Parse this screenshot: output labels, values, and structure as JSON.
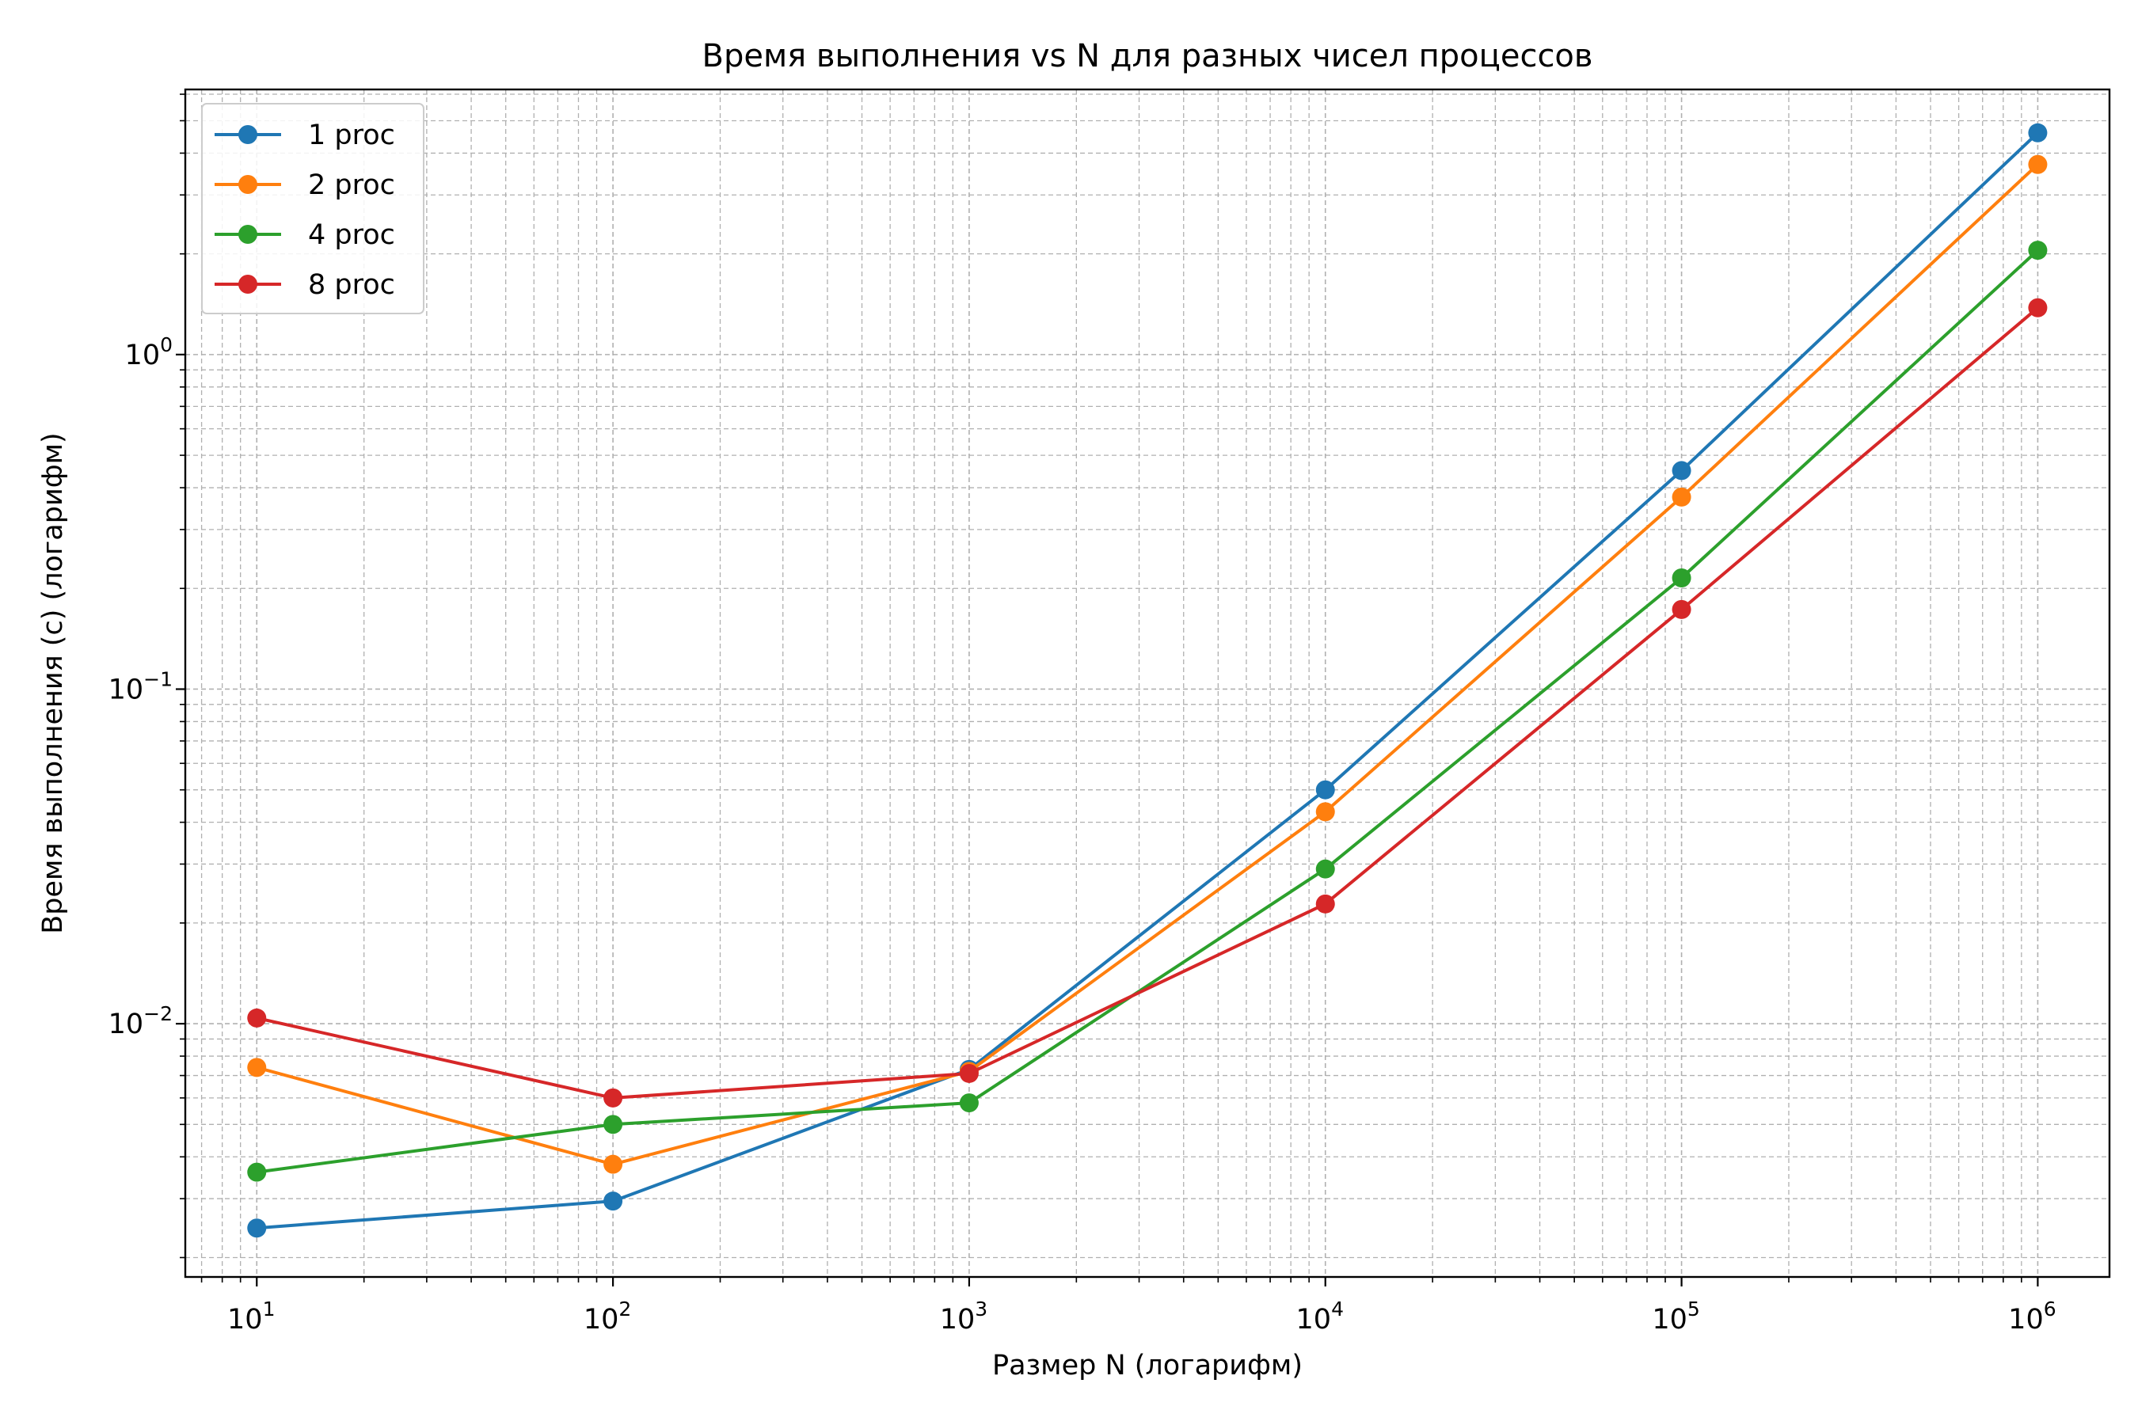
{
  "chart_data": {
    "type": "line",
    "title": "Время выполнения vs N для разных чисел процессов",
    "xlabel": "Размер N (логарифм)",
    "ylabel": "Время выполнения (с) (логарифм)",
    "xscale": "log",
    "yscale": "log",
    "xlim": [
      6.3,
      1590000
    ],
    "ylim": [
      0.00175,
      6.2
    ],
    "grid": true,
    "grid_which": "both",
    "legend_position": "upper-left",
    "x": [
      10,
      100,
      1000,
      10000,
      100000,
      1000000
    ],
    "x_ticks": [
      {
        "base": "10",
        "exp": "1"
      },
      {
        "base": "10",
        "exp": "2"
      },
      {
        "base": "10",
        "exp": "3"
      },
      {
        "base": "10",
        "exp": "4"
      },
      {
        "base": "10",
        "exp": "5"
      },
      {
        "base": "10",
        "exp": "6"
      }
    ],
    "y_ticks": [
      {
        "base": "10",
        "exp": "−2"
      },
      {
        "base": "10",
        "exp": "−1"
      },
      {
        "base": "10",
        "exp": "0"
      }
    ],
    "series": [
      {
        "name": "1 proc",
        "color": "#1f77b4",
        "values": [
          0.00245,
          0.00295,
          0.0073,
          0.05,
          0.45,
          4.6
        ]
      },
      {
        "name": "2 proc",
        "color": "#ff7f0e",
        "values": [
          0.0074,
          0.0038,
          0.0072,
          0.043,
          0.375,
          3.7
        ]
      },
      {
        "name": "4 proc",
        "color": "#2ca02c",
        "values": [
          0.0036,
          0.005,
          0.0058,
          0.029,
          0.215,
          2.05
        ]
      },
      {
        "name": "8 proc",
        "color": "#d62728",
        "values": [
          0.0104,
          0.006,
          0.0071,
          0.0228,
          0.173,
          1.38
        ]
      }
    ]
  }
}
